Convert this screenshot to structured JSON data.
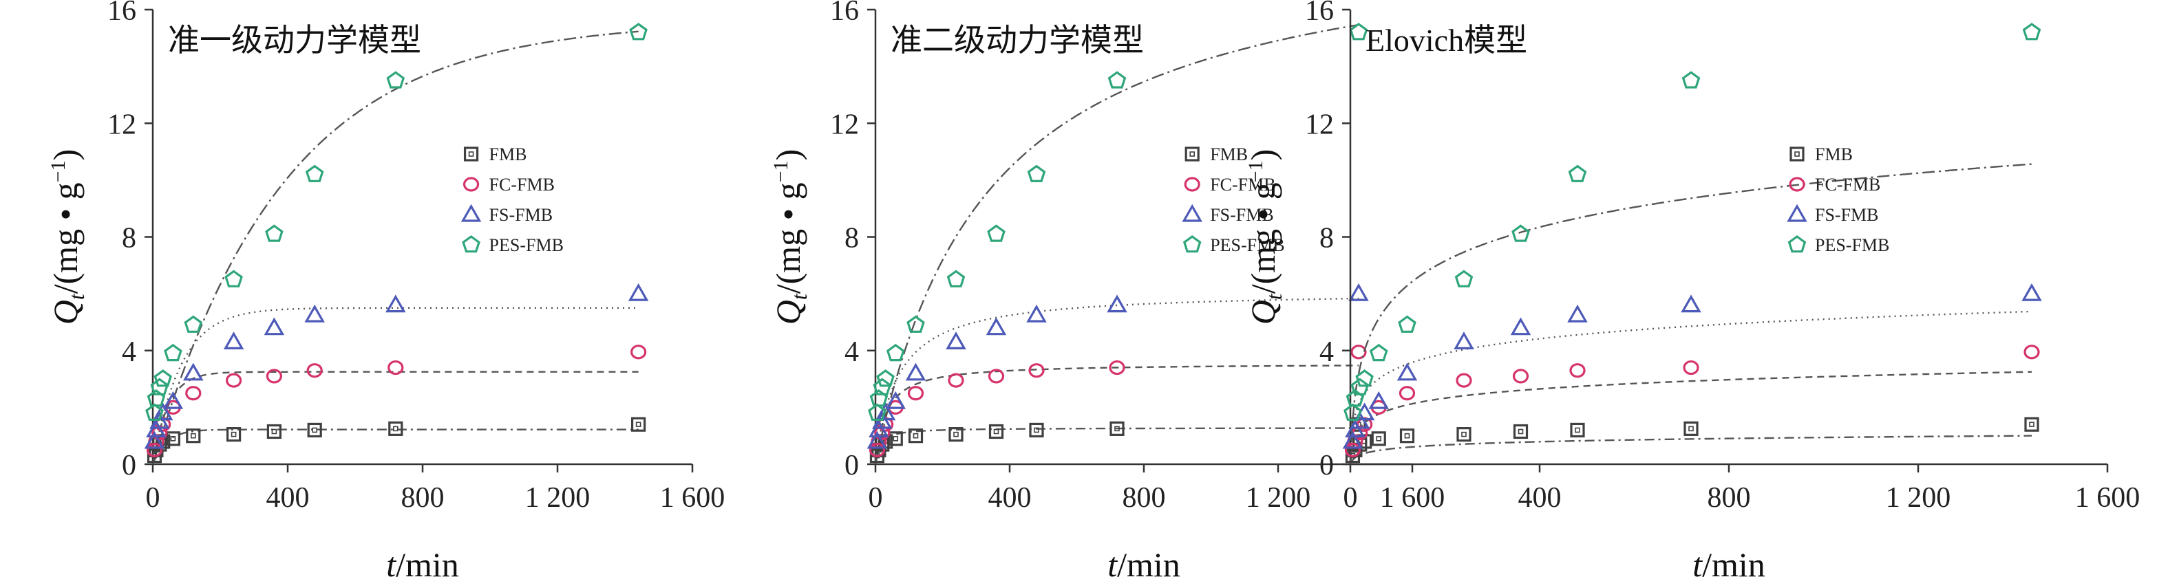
{
  "figure": {
    "colors": {
      "FMB": "#404040",
      "FC-FMB": "#d6336c",
      "FS-FMB": "#4d5ab8",
      "PES-FMB": "#2fa67a",
      "axis": "#333333"
    }
  },
  "chart_data": [
    {
      "type": "scatter",
      "title": "准一级动力学模型",
      "xlabel_var": "t",
      "xlabel_unit": "/min",
      "ylabel_var": "Q",
      "ylabel_sub": "t",
      "ylabel_unit": "/(mg • g",
      "ylabel_sup": "−1",
      "ylabel_close": ")",
      "xlim": [
        0,
        1600
      ],
      "ylim": [
        0,
        16
      ],
      "xticks": [
        0,
        400,
        800,
        1200,
        1600
      ],
      "xtick_labels": [
        "0",
        "400",
        "800",
        "1 200",
        "1 600"
      ],
      "yticks": [
        0,
        4,
        8,
        12,
        16
      ],
      "ytick_labels": [
        "0",
        "4",
        "8",
        "12",
        "16"
      ],
      "legend": [
        "FMB",
        "FC-FMB",
        "FS-FMB",
        "PES-FMB"
      ],
      "legend_position": "middle-right",
      "x": [
        5,
        10,
        20,
        30,
        60,
        120,
        240,
        360,
        480,
        720,
        1440
      ],
      "series": [
        {
          "name": "FMB",
          "marker": "square",
          "values": [
            0.3,
            0.5,
            0.7,
            0.8,
            0.9,
            1.0,
            1.05,
            1.15,
            1.2,
            1.25,
            1.4
          ],
          "fit": {
            "model": "pfo",
            "qe": 1.22,
            "k": 0.025,
            "style": "dashdot"
          }
        },
        {
          "name": "FC-FMB",
          "marker": "circle",
          "values": [
            0.5,
            0.8,
            1.1,
            1.4,
            2.0,
            2.5,
            2.95,
            3.1,
            3.3,
            3.4,
            3.95
          ],
          "fit": {
            "model": "pfo",
            "qe": 3.25,
            "k": 0.022,
            "style": "dashed"
          }
        },
        {
          "name": "FS-FMB",
          "marker": "triangle",
          "values": [
            0.8,
            1.2,
            1.5,
            1.8,
            2.2,
            3.2,
            4.3,
            4.8,
            5.25,
            5.6,
            6.0
          ],
          "fit": {
            "model": "pfo",
            "qe": 5.5,
            "k": 0.012,
            "style": "dotted"
          }
        },
        {
          "name": "PES-FMB",
          "marker": "pentagon",
          "values": [
            1.8,
            2.3,
            2.7,
            3.0,
            3.9,
            4.9,
            6.5,
            8.1,
            10.2,
            13.5,
            15.2
          ],
          "fit": {
            "model": "pfo",
            "qe": 15.6,
            "k": 0.0026,
            "style": "longdashdot"
          }
        }
      ]
    },
    {
      "type": "scatter",
      "title": "准二级动力学模型",
      "xlabel_var": "t",
      "xlabel_unit": "/min",
      "ylabel_var": "Q",
      "ylabel_sub": "t",
      "ylabel_unit": "/(mg • g",
      "ylabel_sup": "−1",
      "ylabel_close": ")",
      "xlim": [
        0,
        1600
      ],
      "ylim": [
        0,
        16
      ],
      "xticks": [
        0,
        400,
        800,
        1200,
        1600
      ],
      "xtick_labels": [
        "0",
        "400",
        "800",
        "1 200",
        "1 600"
      ],
      "yticks": [
        0,
        4,
        8,
        12,
        16
      ],
      "ytick_labels": [
        "0",
        "4",
        "8",
        "12",
        "16"
      ],
      "legend": [
        "FMB",
        "FC-FMB",
        "FS-FMB",
        "PES-FMB"
      ],
      "legend_position": "middle-right",
      "x": [
        5,
        10,
        20,
        30,
        60,
        120,
        240,
        360,
        480,
        720,
        1440
      ],
      "series": [
        {
          "name": "FMB",
          "marker": "square",
          "values": [
            0.3,
            0.5,
            0.7,
            0.8,
            0.9,
            1.0,
            1.05,
            1.15,
            1.2,
            1.25,
            1.4
          ],
          "fit": {
            "model": "pso",
            "qe": 1.28,
            "k": 0.06,
            "style": "dashdot"
          }
        },
        {
          "name": "FC-FMB",
          "marker": "circle",
          "values": [
            0.5,
            0.8,
            1.1,
            1.4,
            2.0,
            2.5,
            2.95,
            3.1,
            3.3,
            3.4,
            3.95
          ],
          "fit": {
            "model": "pso",
            "qe": 3.55,
            "k": 0.009,
            "style": "dashed"
          }
        },
        {
          "name": "FS-FMB",
          "marker": "triangle",
          "values": [
            0.8,
            1.2,
            1.5,
            1.8,
            2.2,
            3.2,
            4.3,
            4.8,
            5.25,
            5.6,
            6.0
          ],
          "fit": {
            "model": "pso",
            "qe": 6.1,
            "k": 0.0025,
            "style": "dotted"
          }
        },
        {
          "name": "PES-FMB",
          "marker": "pentagon",
          "values": [
            1.8,
            2.3,
            2.7,
            3.0,
            3.9,
            4.9,
            6.5,
            8.1,
            10.2,
            13.5,
            15.2
          ],
          "fit": {
            "model": "pso",
            "qe": 19.0,
            "k": 0.00016,
            "style": "longdashdot"
          }
        }
      ]
    },
    {
      "type": "scatter",
      "title": "Elovich模型",
      "xlabel_var": "t",
      "xlabel_unit": "/min",
      "ylabel_var": "Q",
      "ylabel_sub": "t",
      "ylabel_unit": "/(mg • g",
      "ylabel_sup": "−1",
      "ylabel_close": ")",
      "xlim": [
        0,
        1600
      ],
      "ylim": [
        0,
        16
      ],
      "xticks": [
        0,
        400,
        800,
        1200,
        1600
      ],
      "xtick_labels": [
        "0",
        "400",
        "800",
        "1 200",
        "1 600"
      ],
      "yticks": [
        0,
        4,
        8,
        12,
        16
      ],
      "ytick_labels": [
        "0",
        "4",
        "8",
        "12",
        "16"
      ],
      "legend": [
        "FMB",
        "FC-FMB",
        "FS-FMB",
        "PES-FMB"
      ],
      "legend_position": "middle-right",
      "x": [
        5,
        10,
        20,
        30,
        60,
        120,
        240,
        360,
        480,
        720,
        1440
      ],
      "series": [
        {
          "name": "FMB",
          "marker": "square",
          "values": [
            0.3,
            0.5,
            0.7,
            0.8,
            0.9,
            1.0,
            1.05,
            1.15,
            1.2,
            1.25,
            1.4
          ],
          "fit": {
            "model": "elovich",
            "a": 0.3,
            "b": 0.165,
            "style": "dashdot"
          }
        },
        {
          "name": "FC-FMB",
          "marker": "circle",
          "values": [
            0.5,
            0.8,
            1.1,
            1.4,
            2.0,
            2.5,
            2.95,
            3.1,
            3.3,
            3.4,
            3.95
          ],
          "fit": {
            "model": "elovich",
            "a": 0.7,
            "b": 0.47,
            "style": "dashed"
          }
        },
        {
          "name": "FS-FMB",
          "marker": "triangle",
          "values": [
            0.8,
            1.2,
            1.5,
            1.8,
            2.2,
            3.2,
            4.3,
            4.8,
            5.25,
            5.6,
            6.0
          ],
          "fit": {
            "model": "elovich",
            "a": 0.9,
            "b": 0.75,
            "style": "dotted"
          }
        },
        {
          "name": "PES-FMB",
          "marker": "pentagon",
          "values": [
            1.8,
            2.3,
            2.7,
            3.0,
            3.9,
            4.9,
            6.5,
            8.1,
            10.2,
            13.5,
            15.2
          ],
          "fit": {
            "model": "elovich",
            "a": 0.3,
            "b": 1.74,
            "style": "longdashdot"
          }
        }
      ]
    }
  ]
}
